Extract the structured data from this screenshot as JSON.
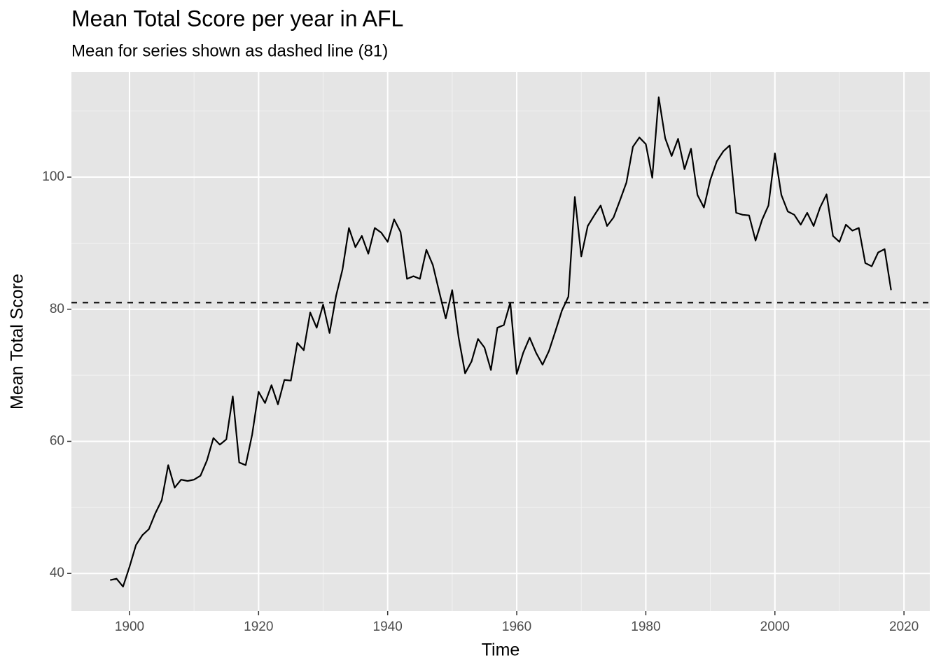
{
  "chart_data": {
    "type": "line",
    "title": "Mean Total Score per year in AFL",
    "subtitle": "Mean for series shown as dashed line (81)",
    "xlabel": "Time",
    "ylabel": "Mean Total Score",
    "x": [
      1897,
      1898,
      1899,
      1900,
      1901,
      1902,
      1903,
      1904,
      1905,
      1906,
      1907,
      1908,
      1909,
      1910,
      1911,
      1912,
      1913,
      1914,
      1915,
      1916,
      1917,
      1918,
      1919,
      1920,
      1921,
      1922,
      1923,
      1924,
      1925,
      1926,
      1927,
      1928,
      1929,
      1930,
      1931,
      1932,
      1933,
      1934,
      1935,
      1936,
      1937,
      1938,
      1939,
      1940,
      1941,
      1942,
      1943,
      1944,
      1945,
      1946,
      1947,
      1948,
      1949,
      1950,
      1951,
      1952,
      1953,
      1954,
      1955,
      1956,
      1957,
      1958,
      1959,
      1960,
      1961,
      1962,
      1963,
      1964,
      1965,
      1966,
      1967,
      1968,
      1969,
      1970,
      1971,
      1972,
      1973,
      1974,
      1975,
      1976,
      1977,
      1978,
      1979,
      1980,
      1981,
      1982,
      1983,
      1984,
      1985,
      1986,
      1987,
      1988,
      1989,
      1990,
      1991,
      1992,
      1993,
      1994,
      1995,
      1996,
      1997,
      1998,
      1999,
      2000,
      2001,
      2002,
      2003,
      2004,
      2005,
      2006,
      2007,
      2008,
      2009,
      2010,
      2011,
      2012,
      2013,
      2014,
      2015,
      2016,
      2017,
      2018
    ],
    "values": [
      39,
      39.2,
      38,
      41,
      44.3,
      45.8,
      46.7,
      49.1,
      51.1,
      56.4,
      53,
      54.2,
      54,
      54.2,
      54.8,
      57.1,
      60.5,
      59.5,
      60.3,
      66.8,
      56.8,
      56.4,
      61,
      67.5,
      65.8,
      68.5,
      65.6,
      69.3,
      69.2,
      74.9,
      73.8,
      79.5,
      77.2,
      80.7,
      76.4,
      82,
      86,
      92.3,
      89.4,
      91.1,
      88.4,
      92.3,
      91.6,
      90.2,
      93.6,
      91.7,
      84.6,
      85,
      84.6,
      89,
      86.7,
      82.6,
      78.6,
      82.9,
      75.7,
      70.3,
      72.1,
      75.5,
      74.2,
      70.8,
      77.2,
      77.6,
      81,
      70.2,
      73.4,
      75.7,
      73.4,
      71.6,
      73.7,
      76.7,
      79.8,
      81.9,
      97,
      88,
      92.6,
      94.2,
      95.7,
      92.6,
      93.9,
      96.5,
      99.2,
      104.6,
      106,
      105,
      99.9,
      112.1,
      105.9,
      103.2,
      105.8,
      101.2,
      104.3,
      97.3,
      95.4,
      99.6,
      102.4,
      103.9,
      104.8,
      94.6,
      94.3,
      94.2,
      90.4,
      93.5,
      95.7,
      103.6,
      97.3,
      94.8,
      94.3,
      92.8,
      94.6,
      92.6,
      95.4,
      97.4,
      91.1,
      90.2,
      92.8,
      91.9,
      92.3,
      87,
      86.5,
      88.6,
      89.1,
      82.9
    ],
    "color": "#000000",
    "hline": 81,
    "xlim": [
      1891,
      2024
    ],
    "xticks": [
      1900,
      1920,
      1940,
      1960,
      1980,
      2000,
      2020
    ],
    "xminor": [
      1910,
      1930,
      1950,
      1970,
      1990,
      2010
    ],
    "ylim": [
      34.3,
      115.9
    ],
    "yticks": [
      40,
      60,
      80,
      100
    ],
    "yminor": [
      50,
      70,
      90,
      110
    ],
    "grid": true
  }
}
